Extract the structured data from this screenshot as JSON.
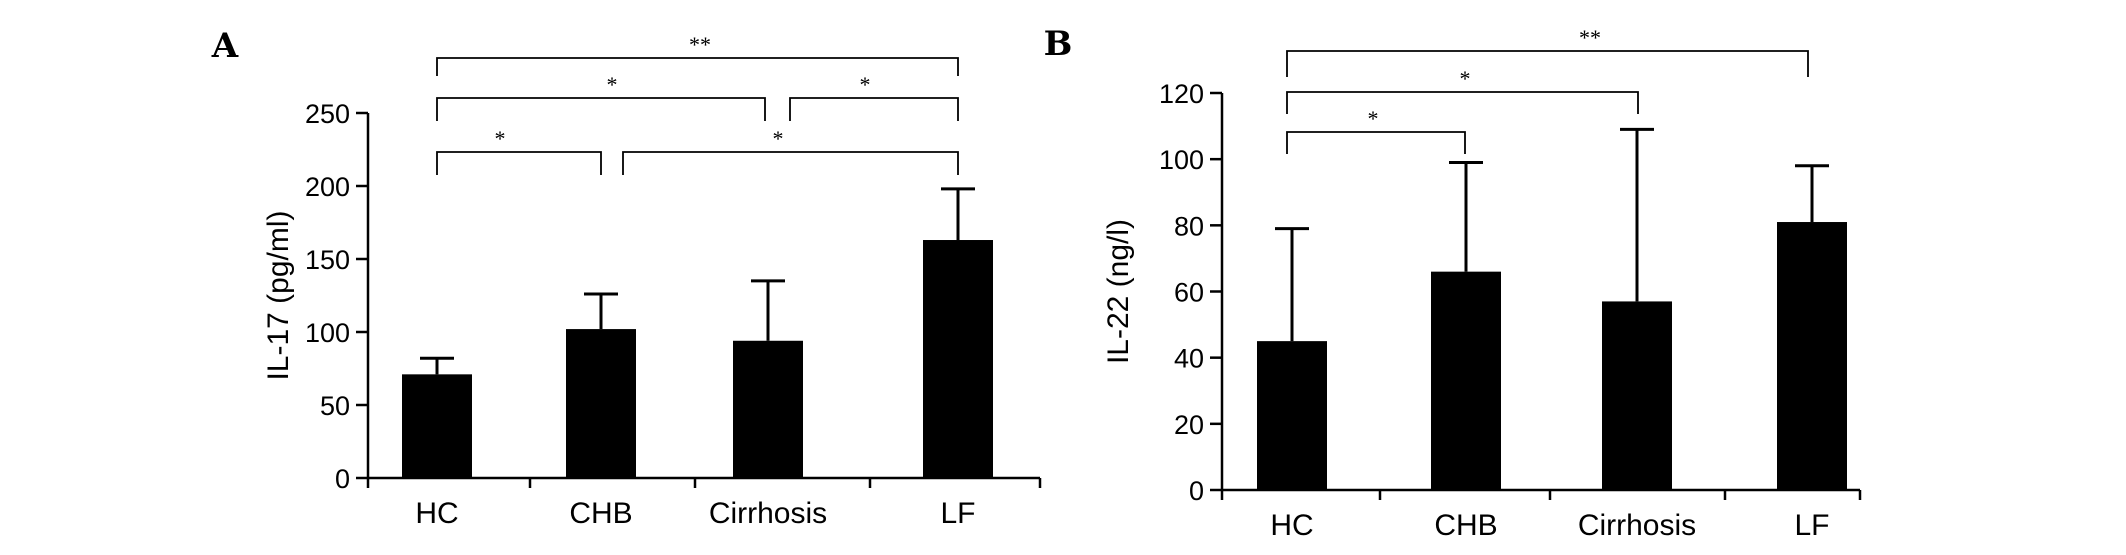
{
  "chart_data": [
    {
      "type": "bar",
      "panel": "A",
      "title": "",
      "xlabel": "",
      "ylabel": "IL-17 (pg/ml)",
      "ylim": [
        0,
        250
      ],
      "yticks": [
        0,
        50,
        100,
        150,
        200,
        250
      ],
      "categories": [
        "HC",
        "CHB",
        "Cirrhosis",
        "LF"
      ],
      "values": [
        71,
        102,
        94,
        163
      ],
      "error_upper": [
        82,
        126,
        135,
        198
      ],
      "significance": [
        {
          "from": 0,
          "to": 1,
          "label": "*"
        },
        {
          "from": 1,
          "to": 3,
          "label": "*"
        },
        {
          "from": 0,
          "to": 2,
          "label": "*"
        },
        {
          "from": 2,
          "to": 3,
          "label": "*"
        },
        {
          "from": 0,
          "to": 3,
          "label": "**"
        }
      ]
    },
    {
      "type": "bar",
      "panel": "B",
      "title": "",
      "xlabel": "",
      "ylabel": "IL-22 (ng/l)",
      "ylim": [
        0,
        120
      ],
      "yticks": [
        0,
        20,
        40,
        60,
        80,
        100,
        120
      ],
      "categories": [
        "HC",
        "CHB",
        "Cirrhosis",
        "LF"
      ],
      "values": [
        45,
        66,
        57,
        81
      ],
      "error_upper": [
        79,
        99,
        109,
        98
      ],
      "significance": [
        {
          "from": 0,
          "to": 1,
          "label": "*"
        },
        {
          "from": 0,
          "to": 2,
          "label": "*"
        },
        {
          "from": 0,
          "to": 3,
          "label": "**"
        }
      ]
    }
  ]
}
